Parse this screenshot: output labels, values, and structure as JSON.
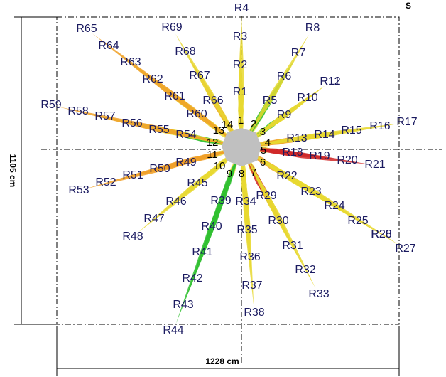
{
  "rays": [
    "R1",
    "R2",
    "R3",
    "R4",
    "R5",
    "R6",
    "R7",
    "R8",
    "R9",
    "R10",
    "R11",
    "R12",
    "R13",
    "R14",
    "R15",
    "R16",
    "R17",
    "R18",
    "R19",
    "R20",
    "R21",
    "R22",
    "R23",
    "R24",
    "R25",
    "R26",
    "R27",
    "R28",
    "R29",
    "R30",
    "R31",
    "R32",
    "R33",
    "R34",
    "R35",
    "R36",
    "R37",
    "R38",
    "R39",
    "R40",
    "R41",
    "R42",
    "R43",
    "R44",
    "R45",
    "R46",
    "R47",
    "R48",
    "R49",
    "R50",
    "R51",
    "R52",
    "R53",
    "R54",
    "R55",
    "R56",
    "R57",
    "R58",
    "R59",
    "R60",
    "R61",
    "R62",
    "R63",
    "R64",
    "R65",
    "R66",
    "R67",
    "R68",
    "R69"
  ],
  "center_labels": [
    "1",
    "2",
    "3",
    "4",
    "5",
    "6",
    "7",
    "8",
    "9",
    "10",
    "11",
    "12",
    "13",
    "14"
  ],
  "corner_label": "S",
  "dimensions": {
    "height": "1105 cm",
    "width": "1228 cm"
  }
}
